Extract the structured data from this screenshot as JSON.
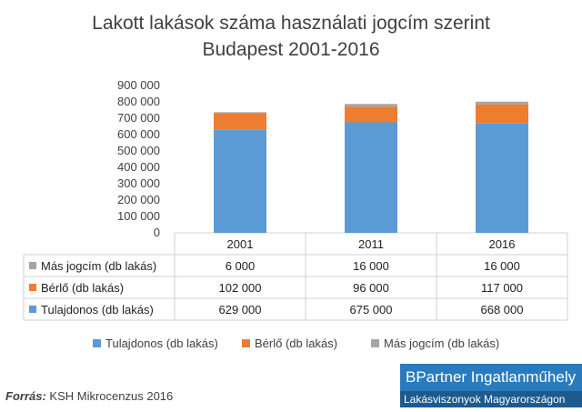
{
  "chart_data": {
    "type": "bar",
    "stacked": true,
    "title_line1": "Lakott lakások száma használati jogcím szerint",
    "title_line2": "Budapest 2001-2016",
    "categories": [
      "2001",
      "2011",
      "2016"
    ],
    "series": [
      {
        "name": "Tulajdonos (db lakás)",
        "values": [
          629000,
          675000,
          668000
        ],
        "labels": [
          "629 000",
          "675 000",
          "668 000"
        ],
        "color": "#5b9bd5"
      },
      {
        "name": "Bérlő (db lakás)",
        "values": [
          102000,
          96000,
          117000
        ],
        "labels": [
          "102 000",
          "96 000",
          "117 000"
        ],
        "color": "#ed7d31"
      },
      {
        "name": "Más jogcím (db lakás)",
        "values": [
          6000,
          16000,
          16000
        ],
        "labels": [
          "6 000",
          "16 000",
          "16 000"
        ],
        "color": "#a5a5a5"
      }
    ],
    "ylim": [
      0,
      900000
    ],
    "yticks": [
      "0",
      "100 000",
      "200 000",
      "300 000",
      "400 000",
      "500 000",
      "600 000",
      "700 000",
      "800 000",
      "900 000"
    ],
    "data_table": true,
    "legend_position": "bottom",
    "grid": false
  },
  "source": {
    "label": "Forrás:",
    "text": "KSH Mikrocenzus 2016"
  },
  "logo": {
    "line1": "BPartner Ingatlanműhely",
    "line2": "Lakásviszonyok Magyarországon"
  }
}
